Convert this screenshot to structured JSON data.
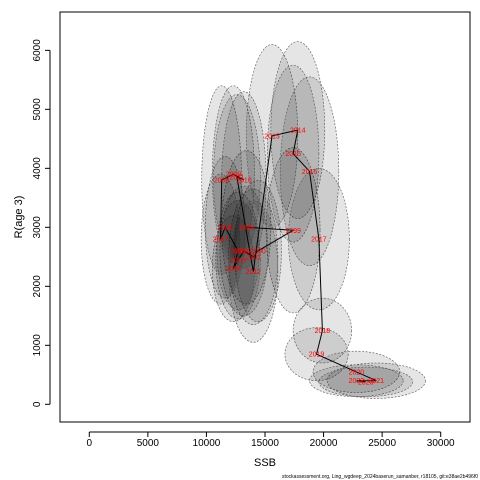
{
  "chart_data": {
    "type": "scatter",
    "title": "",
    "xlabel": "SSB",
    "ylabel": "R(age 3)",
    "xlim": [
      -2500,
      32500
    ],
    "ylim": [
      -300,
      6650
    ],
    "xticks": [
      0,
      5000,
      10000,
      15000,
      20000,
      25000,
      30000
    ],
    "yticks": [
      0,
      1000,
      2000,
      3000,
      4000,
      5000,
      6000
    ],
    "grid": false,
    "legend": "none",
    "line_color": "#000000",
    "label_color": "#ff0000",
    "points": [
      {
        "year": "1998",
        "ssb": 13400,
        "rec": 3000,
        "sd_ssb": 2100,
        "sd_rec": 1300
      },
      {
        "year": "1999",
        "ssb": 17400,
        "rec": 2950,
        "sd_ssb": 2300,
        "sd_rec": 1400
      },
      {
        "year": "2000",
        "ssb": 14400,
        "rec": 2600,
        "sd_ssb": 2000,
        "sd_rec": 1200
      },
      {
        "year": "2001",
        "ssb": 14000,
        "rec": 2500,
        "sd_ssb": 2100,
        "sd_rec": 1150
      },
      {
        "year": "2002",
        "ssb": 13200,
        "rec": 2600,
        "sd_ssb": 2050,
        "sd_rec": 1100
      },
      {
        "year": "2003",
        "ssb": 12700,
        "rec": 2450,
        "sd_ssb": 1900,
        "sd_rec": 1000
      },
      {
        "year": "2004",
        "ssb": 12300,
        "rec": 2300,
        "sd_ssb": 1800,
        "sd_rec": 900
      },
      {
        "year": "2005",
        "ssb": 12700,
        "rec": 2600,
        "sd_ssb": 1800,
        "sd_rec": 1000
      },
      {
        "year": "2006",
        "ssb": 11600,
        "rec": 3000,
        "sd_ssb": 1700,
        "sd_rec": 1200
      },
      {
        "year": "2007",
        "ssb": 11200,
        "rec": 2800,
        "sd_ssb": 1650,
        "sd_rec": 1100
      },
      {
        "year": "2008",
        "ssb": 11300,
        "rec": 3800,
        "sd_ssb": 1700,
        "sd_rec": 1600
      },
      {
        "year": "2009",
        "ssb": 12300,
        "rec": 3900,
        "sd_ssb": 1800,
        "sd_rec": 1500
      },
      {
        "year": "2010",
        "ssb": 13200,
        "rec": 3800,
        "sd_ssb": 1900,
        "sd_rec": 1500
      },
      {
        "year": "2011",
        "ssb": 12600,
        "rec": 3850,
        "sd_ssb": 2000,
        "sd_rec": 1400
      },
      {
        "year": "2012",
        "ssb": 14000,
        "rec": 2250,
        "sd_ssb": 2100,
        "sd_rec": 1200
      },
      {
        "year": "2013",
        "ssb": 15600,
        "rec": 4550,
        "sd_ssb": 2200,
        "sd_rec": 1550
      },
      {
        "year": "2014",
        "ssb": 17800,
        "rec": 4650,
        "sd_ssb": 2300,
        "sd_rec": 1500
      },
      {
        "year": "2015",
        "ssb": 17400,
        "rec": 4250,
        "sd_ssb": 2200,
        "sd_rec": 1500
      },
      {
        "year": "2016",
        "ssb": 18800,
        "rec": 3950,
        "sd_ssb": 2500,
        "sd_rec": 1600
      },
      {
        "year": "2017",
        "ssb": 19600,
        "rec": 2800,
        "sd_ssb": 2600,
        "sd_rec": 1200
      },
      {
        "year": "2018",
        "ssb": 19900,
        "rec": 1250,
        "sd_ssb": 2500,
        "sd_rec": 550
      },
      {
        "year": "2019",
        "ssb": 19400,
        "rec": 850,
        "sd_ssb": 2700,
        "sd_rec": 450
      },
      {
        "year": "2020",
        "ssb": 22800,
        "rec": 550,
        "sd_ssb": 3700,
        "sd_rec": 350
      },
      {
        "year": "2021",
        "ssb": 24500,
        "rec": 400,
        "sd_ssb": 4200,
        "sd_rec": 300
      },
      {
        "year": "2022",
        "ssb": 22800,
        "rec": 400,
        "sd_ssb": 4000,
        "sd_rec": 270
      },
      {
        "year": "2023",
        "ssb": 23600,
        "rec": 380,
        "sd_ssb": 4000,
        "sd_rec": 250
      }
    ],
    "footnote": "stockassessment.org, Ling_wgdeep_2024baserun_samanber, r18105, git:e38ae2b496f0"
  }
}
